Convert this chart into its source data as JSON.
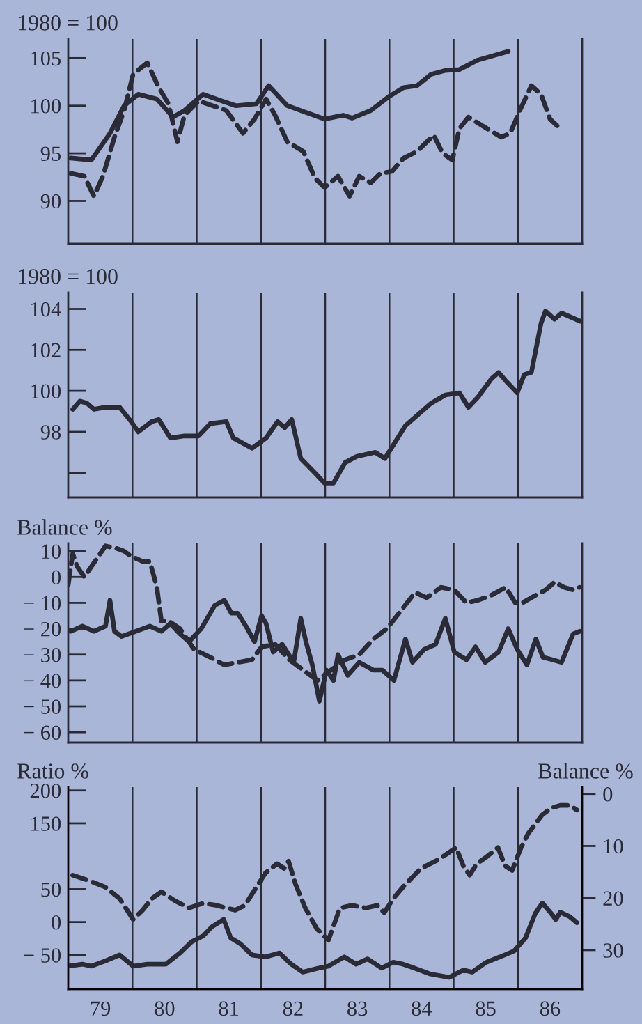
{
  "chart_data": [
    {
      "type": "line",
      "ylabel": "1980 = 100",
      "xlim": [
        78.5,
        86.5
      ],
      "xticks": [
        79,
        80,
        81,
        82,
        83,
        84,
        85,
        86
      ],
      "ylim": [
        85.5,
        107
      ],
      "yticks": [
        90,
        95,
        100,
        105
      ],
      "tick_labels": "y",
      "grid": false,
      "legend": false,
      "marker": "none",
      "ref_lines": [
        {
          "axis": "x",
          "value": 79.5
        },
        {
          "axis": "x",
          "value": 80.5
        },
        {
          "axis": "x",
          "value": 81.5
        },
        {
          "axis": "x",
          "value": 82.5
        },
        {
          "axis": "x",
          "value": 83.5
        },
        {
          "axis": "x",
          "value": 84.5
        },
        {
          "axis": "x",
          "value": 85.5
        }
      ],
      "series": [
        {
          "color": "#2b2b38",
          "line_style": "solid",
          "x": [
            78.54,
            78.86,
            79.15,
            79.37,
            79.59,
            79.88,
            80.13,
            80.31,
            80.6,
            80.89,
            81.11,
            81.43,
            81.62,
            81.91,
            82.2,
            82.49,
            82.78,
            82.92,
            83.21,
            83.5,
            83.72,
            83.93,
            84.15,
            84.37,
            84.59,
            84.88,
            85.09,
            85.35
          ],
          "values": [
            94.5,
            94.3,
            97.1,
            100,
            101.2,
            100.7,
            98.8,
            99.5,
            101.2,
            100.5,
            100,
            100.2,
            102.1,
            100,
            99.3,
            98.6,
            99,
            98.7,
            99.5,
            101,
            101.9,
            102.1,
            103.3,
            103.7,
            103.8,
            104.8,
            105.2,
            105.7
          ]
        },
        {
          "color": "#2b2b38",
          "line_style": "dashed",
          "x": [
            78.54,
            78.75,
            78.9,
            79.04,
            79.22,
            79.37,
            79.51,
            79.73,
            79.91,
            80.06,
            80.2,
            80.31,
            80.53,
            80.96,
            81.22,
            81.4,
            81.58,
            81.72,
            81.91,
            82.16,
            82.34,
            82.49,
            82.7,
            82.88,
            83.03,
            83.21,
            83.36,
            83.54,
            83.72,
            83.93,
            84.19,
            84.33,
            84.48,
            84.59,
            84.73,
            85.02,
            85.24,
            85.38,
            85.53,
            85.71,
            85.86,
            86.0,
            86.11
          ],
          "values": [
            92.9,
            92.6,
            90.5,
            92.6,
            96.7,
            99.5,
            103.3,
            104.5,
            101.9,
            100.2,
            96.2,
            99,
            100.5,
            99.5,
            97.1,
            98.6,
            100.7,
            99,
            96.2,
            95.2,
            92.4,
            91.4,
            92.6,
            90.5,
            92.6,
            91.9,
            92.9,
            93.1,
            94.5,
            95.2,
            96.9,
            95,
            94.3,
            97.6,
            98.8,
            97.6,
            96.7,
            97.1,
            99.5,
            102.1,
            101.2,
            98.6,
            97.9
          ]
        }
      ]
    },
    {
      "type": "line",
      "ylabel": "1980 = 100",
      "xlim": [
        78.5,
        86.5
      ],
      "xticks": [
        79,
        80,
        81,
        82,
        83,
        84,
        85,
        86
      ],
      "ylim": [
        94.8,
        104.8
      ],
      "yticks": [
        {
          "value": 96,
          "label": null
        },
        98,
        100,
        102,
        104
      ],
      "tick_labels": "y",
      "grid": false,
      "legend": false,
      "marker": "none",
      "ref_lines": [
        {
          "axis": "x",
          "value": 79.5
        },
        {
          "axis": "x",
          "value": 80.5
        },
        {
          "axis": "x",
          "value": 81.5
        },
        {
          "axis": "x",
          "value": 82.5
        },
        {
          "axis": "x",
          "value": 83.5
        },
        {
          "axis": "x",
          "value": 84.5
        },
        {
          "axis": "x",
          "value": 85.5
        }
      ],
      "series": [
        {
          "color": "#2b2b38",
          "line_style": "solid",
          "x": [
            78.57,
            78.68,
            78.79,
            78.9,
            79.08,
            79.3,
            79.48,
            79.59,
            79.8,
            79.91,
            80.09,
            80.31,
            80.53,
            80.71,
            80.96,
            81.07,
            81.36,
            81.58,
            81.76,
            81.87,
            81.98,
            82.12,
            82.34,
            82.49,
            82.63,
            82.81,
            82.99,
            83.28,
            83.43,
            83.57,
            83.75,
            83.93,
            84.15,
            84.37,
            84.59,
            84.73,
            84.88,
            85.09,
            85.2,
            85.31,
            85.49,
            85.6,
            85.71,
            85.86,
            85.93,
            86.07,
            86.18,
            86.47
          ],
          "values": [
            99.1,
            99.5,
            99.4,
            99.1,
            99.2,
            99.2,
            98.5,
            98,
            98.5,
            98.6,
            97.7,
            97.8,
            97.8,
            98.4,
            98.5,
            97.7,
            97.2,
            97.7,
            98.5,
            98.2,
            98.6,
            96.7,
            96,
            95.5,
            95.5,
            96.5,
            96.8,
            97,
            96.7,
            97.4,
            98.3,
            98.8,
            99.4,
            99.8,
            99.9,
            99.2,
            99.7,
            100.6,
            100.9,
            100.5,
            99.9,
            100.8,
            100.9,
            103.3,
            103.9,
            103.5,
            103.8,
            103.4
          ]
        }
      ]
    },
    {
      "type": "line",
      "ylabel": "Balance %",
      "xlim": [
        78.5,
        86.5
      ],
      "xticks": [
        79,
        80,
        81,
        82,
        83,
        84,
        85,
        86
      ],
      "ylim": [
        -64,
        13
      ],
      "yticks": [
        {
          "value": -60,
          "label": "− 60"
        },
        {
          "value": -50,
          "label": "− 50"
        },
        {
          "value": -40,
          "label": "− 40"
        },
        {
          "value": -30,
          "label": "− 30"
        },
        {
          "value": -20,
          "label": "− 20"
        },
        {
          "value": -10,
          "label": "− 10"
        },
        0,
        10
      ],
      "tick_labels": "y",
      "grid": false,
      "legend": false,
      "marker": "none",
      "ref_lines": [
        {
          "axis": "x",
          "value": 79.5
        },
        {
          "axis": "x",
          "value": 80.5
        },
        {
          "axis": "x",
          "value": 81.5
        },
        {
          "axis": "x",
          "value": 82.5
        },
        {
          "axis": "x",
          "value": 83.5
        },
        {
          "axis": "x",
          "value": 84.5
        },
        {
          "axis": "x",
          "value": 85.5
        }
      ],
      "series": [
        {
          "color": "#2b2b38",
          "line_style": "solid",
          "x": [
            78.54,
            78.72,
            78.9,
            79.08,
            79.15,
            79.22,
            79.33,
            79.55,
            79.77,
            79.95,
            80.09,
            80.24,
            80.38,
            80.57,
            80.78,
            80.93,
            81.04,
            81.14,
            81.29,
            81.4,
            81.51,
            81.58,
            81.69,
            81.83,
            82.01,
            82.12,
            82.2,
            82.3,
            82.41,
            82.52,
            82.63,
            82.7,
            82.85,
            83.03,
            83.25,
            83.39,
            83.57,
            83.75,
            83.86,
            84.04,
            84.22,
            84.37,
            84.51,
            84.7,
            84.84,
            84.99,
            85.2,
            85.35,
            85.49,
            85.64,
            85.78,
            85.89,
            86.04,
            86.18,
            86.36,
            86.46
          ],
          "values": [
            -21,
            -19,
            -21,
            -19,
            -9,
            -21,
            -23,
            -21,
            -19,
            -21,
            -18,
            -22,
            -25,
            -20,
            -11,
            -9,
            -14,
            -14,
            -20,
            -25,
            -15,
            -18,
            -29,
            -26,
            -33,
            -16,
            -25,
            -34,
            -48,
            -36,
            -40,
            -30,
            -38,
            -33,
            -36,
            -36,
            -40,
            -24,
            -33,
            -28,
            -26,
            -16,
            -29,
            -32,
            -27,
            -33,
            -29,
            -20,
            -28,
            -34,
            -24,
            -31,
            -32,
            -33,
            -22,
            -21
          ]
        },
        {
          "color": "#2b2b38",
          "line_style": "dashed",
          "x": [
            78.5,
            78.57,
            78.64,
            78.75,
            78.86,
            79.08,
            79.26,
            79.37,
            79.48,
            79.66,
            79.77,
            79.88,
            79.95,
            80.06,
            80.24,
            80.46,
            80.71,
            80.93,
            81.14,
            81.36,
            81.51,
            81.72,
            81.94,
            82.16,
            82.38,
            82.59,
            82.81,
            83.03,
            83.25,
            83.46,
            83.68,
            83.9,
            84.08,
            84.3,
            84.51,
            84.7,
            84.88,
            85.09,
            85.31,
            85.46,
            85.57,
            85.78,
            85.93,
            86.07,
            86.22,
            86.36,
            86.46
          ],
          "values": [
            -3,
            9,
            4,
            0,
            4,
            12,
            11,
            10,
            8,
            6,
            6,
            -4,
            -17,
            -17,
            -20,
            -28,
            -31,
            -34,
            -33,
            -32,
            -27,
            -26,
            -32,
            -36,
            -40,
            -36,
            -32,
            -30,
            -24,
            -20,
            -13,
            -6,
            -8,
            -4,
            -5,
            -10,
            -9,
            -7,
            -4,
            -10,
            -10,
            -7,
            -5,
            -2,
            -4,
            -5,
            -4
          ]
        }
      ]
    },
    {
      "type": "line",
      "ylabel": "Ratio %",
      "y2label": "Balance %",
      "xlim": [
        78.5,
        86.5
      ],
      "ylim": [
        -102,
        205
      ],
      "yticks": [
        {
          "value": -50,
          "label": "− 50"
        },
        0,
        50,
        150,
        200
      ],
      "y2lim": [
        37.5,
        -1.3
      ],
      "y2ticks": [
        0,
        10,
        20,
        30
      ],
      "xticks": [
        79,
        80,
        81,
        82,
        83,
        84,
        85,
        86
      ],
      "grid": false,
      "legend": false,
      "marker": "none",
      "ref_lines": [
        {
          "axis": "x",
          "value": 79.5
        },
        {
          "axis": "x",
          "value": 80.5
        },
        {
          "axis": "x",
          "value": 81.5
        },
        {
          "axis": "x",
          "value": 82.5
        },
        {
          "axis": "x",
          "value": 83.5
        },
        {
          "axis": "x",
          "value": 84.5
        },
        {
          "axis": "x",
          "value": 85.5
        }
      ],
      "series": [
        {
          "color": "#2b2b38",
          "line_style": "solid",
          "x": [
            78.5,
            78.72,
            78.86,
            79.08,
            79.3,
            79.51,
            79.73,
            80.02,
            80.24,
            80.42,
            80.6,
            80.74,
            80.92,
            81.03,
            81.18,
            81.36,
            81.57,
            81.79,
            81.97,
            82.15,
            82.4,
            82.55,
            82.8,
            82.98,
            83.16,
            83.38,
            83.56,
            83.71,
            83.89,
            84.14,
            84.43,
            84.65,
            84.79,
            85.01,
            85.22,
            85.44,
            85.62,
            85.77,
            85.88,
            86.02,
            86.09,
            86.16,
            86.31,
            86.42
          ],
          "values": [
            -67,
            -64,
            -67,
            -59,
            -50,
            -67,
            -64,
            -64,
            -47,
            -30,
            -21,
            -7,
            4,
            -24,
            -33,
            -50,
            -53,
            -47,
            -64,
            -76,
            -70,
            -67,
            -53,
            -64,
            -56,
            -70,
            -61,
            -64,
            -70,
            -79,
            -84,
            -73,
            -76,
            -61,
            -53,
            -44,
            -24,
            13,
            29,
            13,
            4,
            15,
            8,
            -1
          ]
        },
        {
          "color": "#2b2b38",
          "line_style": "dashed",
          "axis": "y2",
          "x": [
            78.57,
            78.79,
            79.08,
            79.3,
            79.51,
            79.66,
            79.8,
            79.95,
            80.16,
            80.38,
            80.6,
            80.81,
            80.96,
            81.1,
            81.25,
            81.43,
            81.57,
            81.75,
            81.86,
            81.93,
            82.04,
            82.19,
            82.37,
            82.55,
            82.73,
            82.91,
            83.13,
            83.31,
            83.42,
            83.56,
            83.71,
            83.85,
            83.99,
            84.28,
            84.54,
            84.65,
            84.75,
            84.86,
            85.01,
            85.19,
            85.3,
            85.41,
            85.55,
            85.66,
            85.77,
            85.88,
            86.02,
            86.16,
            86.31,
            86.42
          ],
          "values": [
            15.6,
            16.5,
            17.9,
            20.1,
            24.1,
            22.3,
            20.1,
            18.8,
            20.5,
            21.9,
            21,
            21.4,
            21.9,
            22.3,
            21.4,
            17.9,
            15.2,
            13.4,
            14.3,
            12.9,
            17.4,
            21.9,
            25.9,
            28.1,
            21.9,
            21.4,
            21.9,
            21.4,
            22.8,
            20.1,
            17.9,
            16.1,
            14.3,
            12.5,
            10.3,
            13.8,
            15.6,
            13.4,
            12.1,
            10.3,
            13.8,
            14.7,
            10.3,
            7.6,
            5.8,
            4,
            2.7,
            2.2,
            2.2,
            3.1
          ]
        }
      ]
    }
  ]
}
